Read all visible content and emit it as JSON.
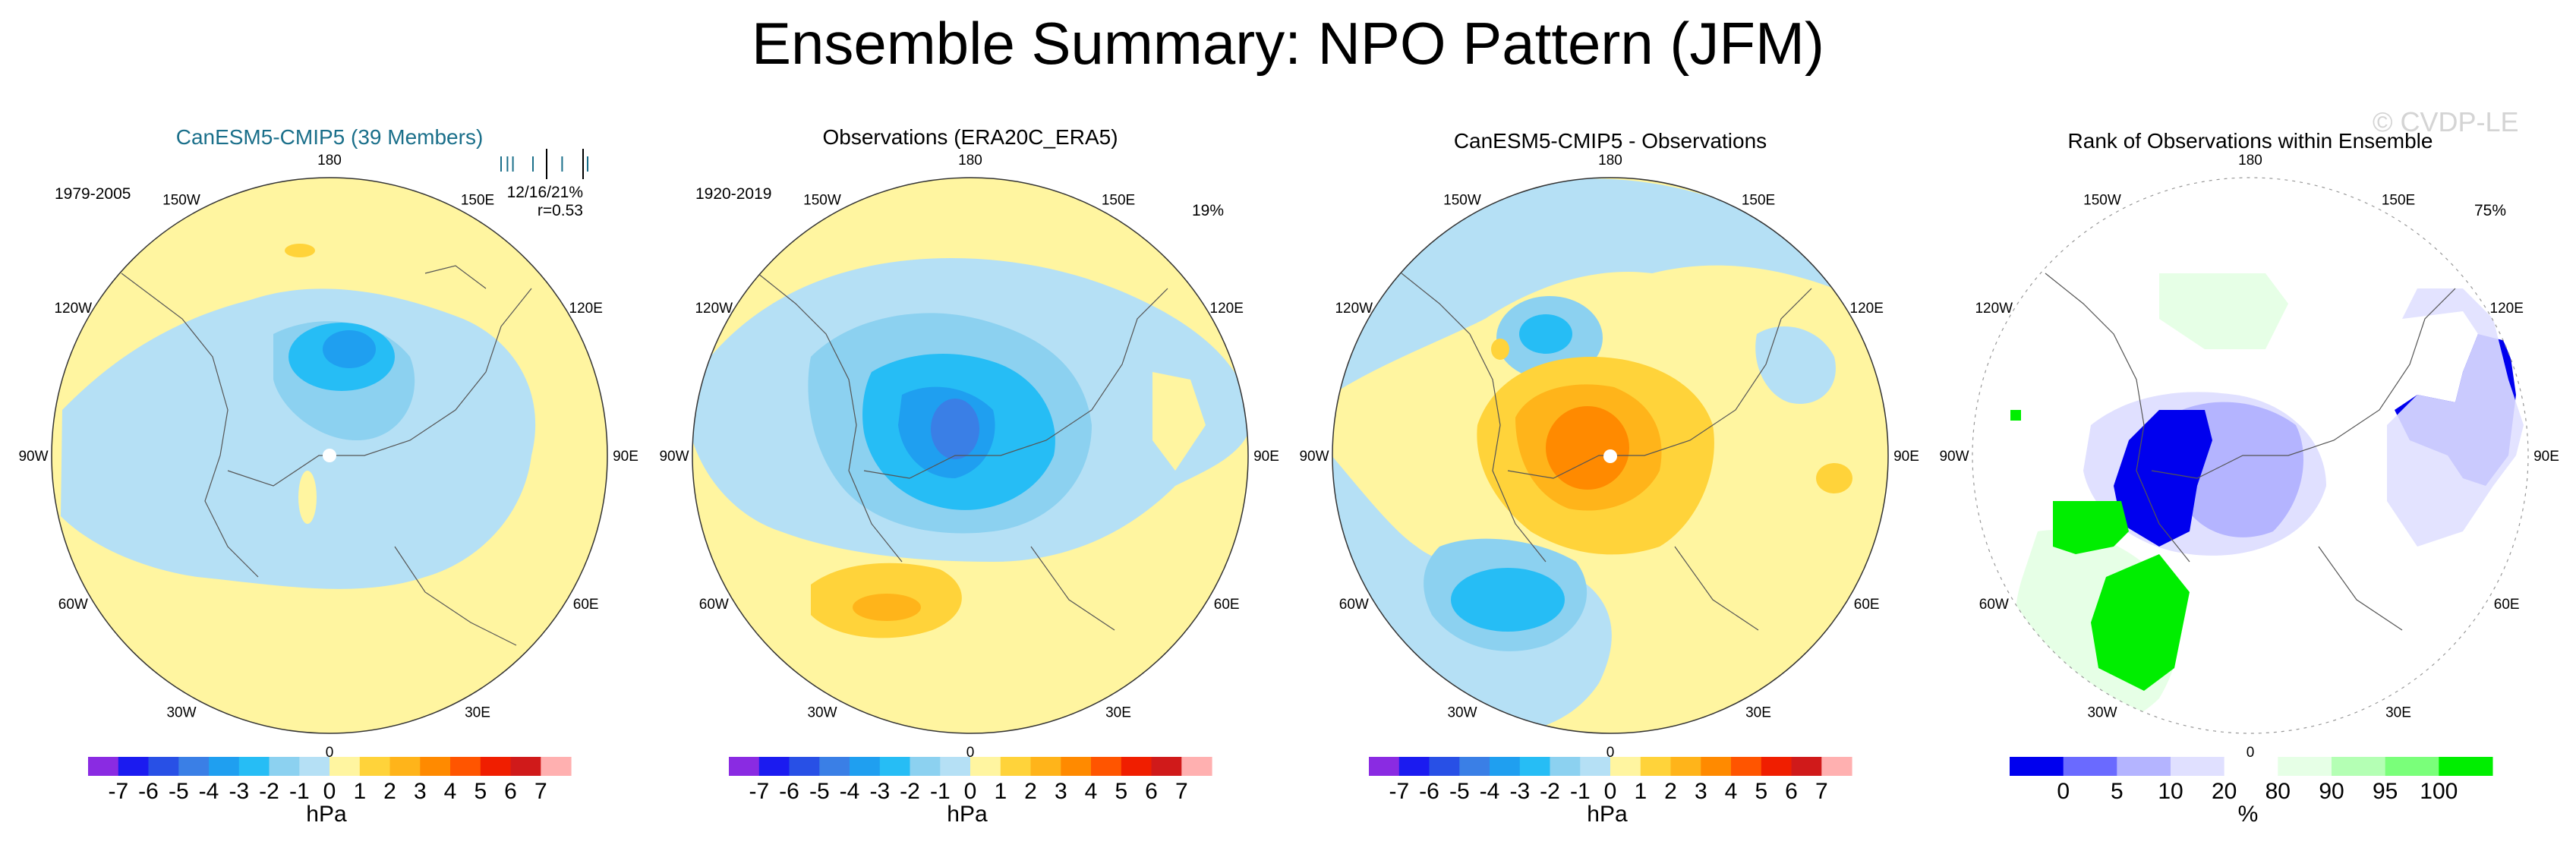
{
  "figure": {
    "title": "Ensemble Summary: NPO Pattern (JFM)",
    "watermark": "© CVDP-LE"
  },
  "colors": {
    "diverging": [
      "#8a2be2",
      "#1b1bf0",
      "#2850e6",
      "#3a7fe6",
      "#1f9ff0",
      "#26bdf5",
      "#8cd1f0",
      "#b5e0f5",
      "#fff5a0",
      "#ffd33a",
      "#ffb41a",
      "#ff8a00",
      "#ff5500",
      "#f01e00",
      "#d01a1a",
      "#ffb0b0"
    ],
    "rank": [
      "#0000ee",
      "#6a6aff",
      "#b4b4ff",
      "#e0e0ff",
      "#ffffff",
      "#e6ffe6",
      "#b4ffb4",
      "#7aff7a",
      "#00ee00"
    ]
  },
  "panels": [
    {
      "title": "CanESM5-CMIP5 (39 Members)",
      "title_color": "#1a6f8a",
      "left_label": "1979-2005",
      "right_label": "12/16/21%",
      "right_label2": "r=0.53",
      "rank_ticks": [
        0.05,
        0.12,
        0.18,
        0.4,
        0.55,
        0.72,
        0.95,
        1.0
      ],
      "colorbar_kind": "diverging",
      "colorbar_ticks": [
        "-7",
        "-6",
        "-5",
        "-4",
        "-3",
        "-2",
        "-1",
        "0",
        "1",
        "2",
        "3",
        "4",
        "5",
        "6",
        "7"
      ],
      "colorbar_unit": "hPa",
      "lon_labels": [
        "180",
        "150E",
        "120E",
        "90E",
        "60E",
        "30E",
        "0",
        "30W",
        "60W",
        "90W",
        "120W",
        "150W"
      ]
    },
    {
      "title": "Observations (ERA20C_ERA5)",
      "title_color": "#000000",
      "left_label": "1920-2019",
      "right_label": "19%",
      "right_label2": "",
      "colorbar_kind": "diverging",
      "colorbar_ticks": [
        "-7",
        "-6",
        "-5",
        "-4",
        "-3",
        "-2",
        "-1",
        "0",
        "1",
        "2",
        "3",
        "4",
        "5",
        "6",
        "7"
      ],
      "colorbar_unit": "hPa",
      "lon_labels": [
        "180",
        "150E",
        "120E",
        "90E",
        "60E",
        "30E",
        "0",
        "30W",
        "60W",
        "90W",
        "120W",
        "150W"
      ]
    },
    {
      "title": "CanESM5-CMIP5 - Observations",
      "title_color": "#000000",
      "left_label": "",
      "right_label": "",
      "right_label2": "",
      "colorbar_kind": "diverging",
      "colorbar_ticks": [
        "-7",
        "-6",
        "-5",
        "-4",
        "-3",
        "-2",
        "-1",
        "0",
        "1",
        "2",
        "3",
        "4",
        "5",
        "6",
        "7"
      ],
      "colorbar_unit": "hPa",
      "lon_labels": [
        "180",
        "150E",
        "120E",
        "90E",
        "60E",
        "30E",
        "0",
        "30W",
        "60W",
        "90W",
        "120W",
        "150W"
      ]
    },
    {
      "title": "Rank of Observations within Ensemble",
      "title_color": "#000000",
      "left_label": "",
      "right_label": "75%",
      "right_label2": "",
      "colorbar_kind": "rank",
      "colorbar_ticks": [
        "0",
        "5",
        "10",
        "20",
        "80",
        "90",
        "95",
        "100"
      ],
      "colorbar_unit": "%",
      "lon_labels": [
        "180",
        "150E",
        "120E",
        "90E",
        "60E",
        "30E",
        "0",
        "30W",
        "60W",
        "90W",
        "120W",
        "150W"
      ]
    }
  ]
}
